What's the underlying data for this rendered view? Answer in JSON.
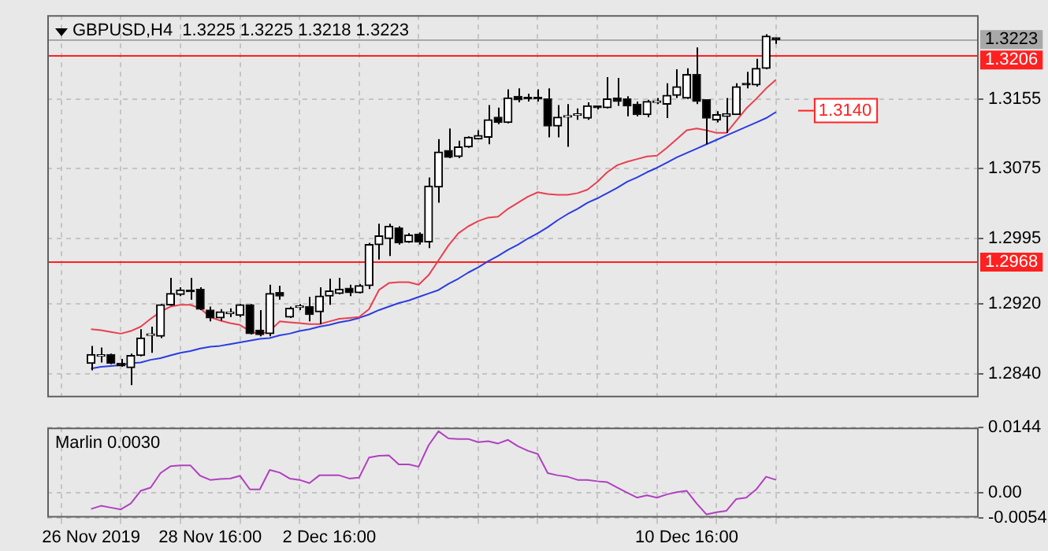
{
  "chart_data": [
    {
      "type": "candlestick",
      "title": "GBPUSD,H4  1.3225 1.3225 1.3218 1.3223",
      "ohlc": [
        [
          1.2852,
          1.2872,
          1.2844,
          1.2862
        ],
        [
          1.286,
          1.287,
          1.2853,
          1.2861
        ],
        [
          1.2862,
          1.2863,
          1.2851,
          1.2852
        ],
        [
          1.2852,
          1.2857,
          1.2848,
          1.2849
        ],
        [
          1.2847,
          1.2863,
          1.2827,
          1.2861
        ],
        [
          1.2861,
          1.2891,
          1.286,
          1.2881
        ],
        [
          1.2884,
          1.2894,
          1.2864,
          1.2885
        ],
        [
          1.2883,
          1.292,
          1.2881,
          1.2919
        ],
        [
          1.2919,
          1.295,
          1.2918,
          1.2932
        ],
        [
          1.2931,
          1.2939,
          1.2929,
          1.2936
        ],
        [
          1.2935,
          1.295,
          1.2925,
          1.2934
        ],
        [
          1.2937,
          1.2939,
          1.2913,
          1.2914
        ],
        [
          1.2913,
          1.2917,
          1.29,
          1.2904
        ],
        [
          1.2904,
          1.2914,
          1.2901,
          1.2911
        ],
        [
          1.2909,
          1.2915,
          1.2905,
          1.291
        ],
        [
          1.2907,
          1.292,
          1.2905,
          1.2919
        ],
        [
          1.2919,
          1.292,
          1.2885,
          1.2886
        ],
        [
          1.289,
          1.2913,
          1.2883,
          1.2885
        ],
        [
          1.2886,
          1.2942,
          1.2883,
          1.2932
        ],
        [
          1.2933,
          1.2941,
          1.2925,
          1.2929
        ],
        [
          1.2905,
          1.2917,
          1.2904,
          1.2915
        ],
        [
          1.2916,
          1.292,
          1.2913,
          1.2917
        ],
        [
          1.2917,
          1.2928,
          1.29,
          1.2908
        ],
        [
          1.2911,
          1.2939,
          1.2897,
          1.2929
        ],
        [
          1.2929,
          1.2949,
          1.2919,
          1.2935
        ],
        [
          1.2932,
          1.295,
          1.2931,
          1.2937
        ],
        [
          1.2938,
          1.2942,
          1.2929,
          1.2933
        ],
        [
          1.2933,
          1.2943,
          1.2932,
          1.2941
        ],
        [
          1.2941,
          1.299,
          1.2937,
          1.2988
        ],
        [
          1.2988,
          1.3012,
          1.2971,
          1.2998
        ],
        [
          1.2995,
          1.3012,
          1.2975,
          1.3009
        ],
        [
          1.3007,
          1.3009,
          1.2988,
          1.299
        ],
        [
          1.2991,
          1.3001,
          1.299,
          1.2999
        ],
        [
          1.3,
          1.3002,
          1.2988,
          1.2991
        ],
        [
          1.2991,
          1.3065,
          1.2984,
          1.3055
        ],
        [
          1.3054,
          1.3109,
          1.3036,
          1.3094
        ],
        [
          1.3096,
          1.3121,
          1.3087,
          1.3088
        ],
        [
          1.3089,
          1.3107,
          1.3087,
          1.31
        ],
        [
          1.31,
          1.3112,
          1.3099,
          1.3111
        ],
        [
          1.3109,
          1.3119,
          1.3109,
          1.3113
        ],
        [
          1.3111,
          1.3148,
          1.3103,
          1.3131
        ],
        [
          1.3134,
          1.3145,
          1.3126,
          1.3128
        ],
        [
          1.3128,
          1.3166,
          1.3127,
          1.3156
        ],
        [
          1.3158,
          1.3167,
          1.3151,
          1.3154
        ],
        [
          1.3156,
          1.3161,
          1.3152,
          1.3155
        ],
        [
          1.3156,
          1.3166,
          1.3152,
          1.3155
        ],
        [
          1.3155,
          1.3167,
          1.3111,
          1.3124
        ],
        [
          1.3124,
          1.3148,
          1.3111,
          1.3134
        ],
        [
          1.3134,
          1.3149,
          1.31,
          1.3135
        ],
        [
          1.3136,
          1.3144,
          1.3131,
          1.3137
        ],
        [
          1.3133,
          1.3151,
          1.3131,
          1.3147
        ],
        [
          1.3146,
          1.3147,
          1.3143,
          1.3145
        ],
        [
          1.3145,
          1.318,
          1.3144,
          1.3155
        ],
        [
          1.3156,
          1.3179,
          1.3147,
          1.3152
        ],
        [
          1.3155,
          1.3158,
          1.3135,
          1.3147
        ],
        [
          1.3149,
          1.3152,
          1.3135,
          1.3137
        ],
        [
          1.3137,
          1.3154,
          1.3134,
          1.3152
        ],
        [
          1.3151,
          1.3156,
          1.3149,
          1.3152
        ],
        [
          1.3149,
          1.3173,
          1.3133,
          1.3159
        ],
        [
          1.3159,
          1.3189,
          1.3156,
          1.3169
        ],
        [
          1.3156,
          1.319,
          1.3155,
          1.3183
        ],
        [
          1.3183,
          1.3214,
          1.3149,
          1.3152
        ],
        [
          1.3154,
          1.3154,
          1.3103,
          1.3133
        ],
        [
          1.3131,
          1.3141,
          1.3128,
          1.3137
        ],
        [
          1.3135,
          1.3156,
          1.3116,
          1.3138
        ],
        [
          1.3137,
          1.3173,
          1.3137,
          1.3169
        ],
        [
          1.3172,
          1.3186,
          1.3167,
          1.3171
        ],
        [
          1.3171,
          1.3201,
          1.3169,
          1.319
        ],
        [
          1.319,
          1.3229,
          1.3189,
          1.3227
        ],
        [
          1.3225,
          1.3225,
          1.3218,
          1.3223
        ]
      ],
      "series": [
        {
          "type": "line",
          "color": "#e8404f",
          "values": [
            1.2891,
            1.289,
            1.2888,
            1.2886,
            1.2889,
            1.2894,
            1.2903,
            1.2911,
            1.2917,
            1.2919,
            1.2919,
            1.2915,
            1.2905,
            1.2901,
            1.2898,
            1.2896,
            1.2889,
            1.2885,
            1.2889,
            1.29,
            1.2899,
            1.2898,
            1.2897,
            1.2897,
            1.29,
            1.2903,
            1.2904,
            1.2905,
            1.2914,
            1.2936,
            1.2944,
            1.2945,
            1.2945,
            1.2942,
            1.2953,
            1.297,
            1.2987,
            1.3001,
            1.3009,
            1.3015,
            1.3019,
            1.302,
            1.3029,
            1.3036,
            1.3043,
            1.3048,
            1.3046,
            1.3045,
            1.3045,
            1.3047,
            1.3051,
            1.306,
            1.3071,
            1.3079,
            1.3083,
            1.3086,
            1.3089,
            1.309,
            1.3099,
            1.3109,
            1.3119,
            1.3121,
            1.3119,
            1.3116,
            1.3116,
            1.313,
            1.3144,
            1.3155,
            1.3167,
            1.3177
          ]
        },
        {
          "type": "line",
          "color": "#2a3de0",
          "values": [
            1.2846,
            1.2848,
            1.2849,
            1.285,
            1.2852,
            1.2853,
            1.2856,
            1.2858,
            1.2861,
            1.2864,
            1.2866,
            1.2869,
            1.2871,
            1.2872,
            1.2874,
            1.2876,
            1.2878,
            1.288,
            1.2881,
            1.2884,
            1.2886,
            1.2889,
            1.2891,
            1.2894,
            1.2896,
            1.2899,
            1.2901,
            1.2904,
            1.2908,
            1.2913,
            1.2917,
            1.2921,
            1.2924,
            1.2928,
            1.2932,
            1.2936,
            1.2943,
            1.2949,
            1.2956,
            1.2962,
            1.2969,
            1.2975,
            1.2982,
            1.2988,
            1.2995,
            1.3001,
            1.3008,
            1.3016,
            1.3023,
            1.3029,
            1.3036,
            1.3041,
            1.3047,
            1.3053,
            1.306,
            1.3065,
            1.3071,
            1.3076,
            1.3082,
            1.3088,
            1.3093,
            1.3098,
            1.3103,
            1.3108,
            1.3113,
            1.3118,
            1.3123,
            1.3128,
            1.3133,
            1.314
          ]
        }
      ],
      "ylim": [
        1.2813,
        1.3251
      ],
      "yticks": [
        {
          "value": 1.284,
          "label": "1.2840"
        },
        {
          "value": 1.292,
          "label": "1.2920"
        },
        1.2995,
        1.3075,
        1.3155
      ],
      "ref_lines": [
        {
          "axis": "y",
          "value": 1.3206,
          "label": "1.3206",
          "color": "#ff2020"
        },
        {
          "axis": "y",
          "value": 1.2968,
          "label": "1.2968",
          "color": "#ff2020"
        },
        {
          "axis": "y",
          "value": 1.3223,
          "label": "1.3223",
          "color": "#a8a8a8"
        }
      ],
      "annotations": [
        "1.3140"
      ],
      "grid": true,
      "tick_labels": "y"
    },
    {
      "type": "line",
      "title": "Marlin 0.0030",
      "categories": [
        "26 Nov 2019",
        null,
        null,
        null,
        null,
        null,
        null,
        null,
        null,
        null,
        null,
        null,
        "28 Nov 16:00",
        null,
        null,
        null,
        null,
        null,
        null,
        null,
        null,
        null,
        null,
        null,
        "2 Dec 16:00",
        null,
        null,
        null,
        null,
        null,
        null,
        null,
        null,
        null,
        null,
        null,
        null,
        null,
        null,
        null,
        null,
        null,
        null,
        null,
        null,
        null,
        null,
        null,
        null,
        null,
        null,
        null,
        null,
        null,
        null,
        null,
        null,
        null,
        null,
        null,
        "10 Dec 16:00",
        null,
        null,
        null,
        null,
        null,
        null,
        null,
        null,
        null
      ],
      "series": [
        {
          "color": "#b040c0",
          "values": [
            -0.0035,
            -0.0028,
            -0.0032,
            -0.0036,
            -0.0023,
            0.0005,
            0.0012,
            0.0044,
            0.0059,
            0.0061,
            0.0061,
            0.0038,
            0.0029,
            0.0031,
            0.0032,
            0.0038,
            0.0008,
            0.0008,
            0.0051,
            0.0045,
            0.0032,
            0.0029,
            0.0022,
            0.0039,
            0.0039,
            0.0039,
            0.0032,
            0.0034,
            0.0078,
            0.0082,
            0.0083,
            0.0063,
            0.0063,
            0.0058,
            0.0105,
            0.0136,
            0.012,
            0.0119,
            0.0119,
            0.0112,
            0.0114,
            0.0109,
            0.0117,
            0.0103,
            0.0093,
            0.0086,
            0.0044,
            0.0039,
            0.0036,
            0.0029,
            0.0029,
            0.0026,
            0.0024,
            0.0012,
            0.0001,
            -0.001,
            -0.0005,
            -0.001,
            -0.0003,
            0.0002,
            0.0005,
            -0.0023,
            -0.0047,
            -0.0042,
            -0.0039,
            -0.0013,
            -0.001,
            0.0008,
            0.0036,
            0.0029
          ]
        }
      ],
      "ylim": [
        -0.0054,
        0.0144
      ],
      "yticks": [
        -0.0054,
        {
          "value": 0,
          "label": "0.00"
        },
        0.0144
      ],
      "grid": true
    }
  ]
}
